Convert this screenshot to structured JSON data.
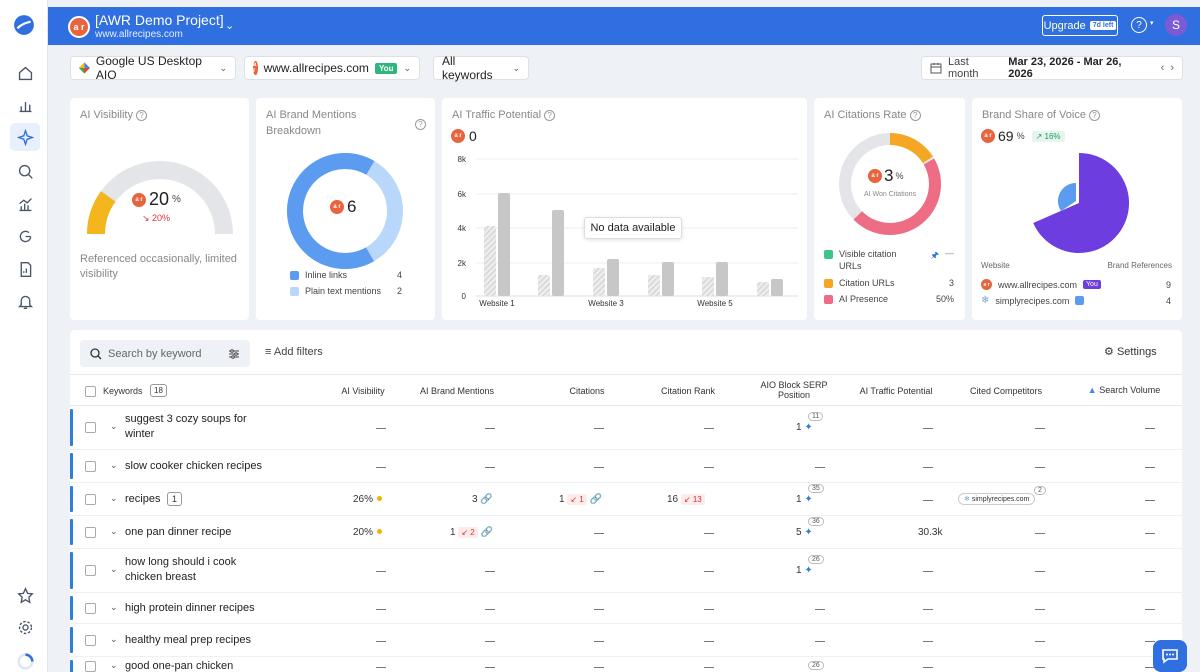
{
  "project": {
    "name": "[AWR Demo Project]",
    "url": "www.allrecipes.com",
    "logo_text": "a r"
  },
  "topbar": {
    "upgrade_label": "Upgrade",
    "days_left": "7d left",
    "help": "?",
    "avatar_initial": "S"
  },
  "filters": {
    "search_engine": "Google US Desktop AIO",
    "site": "www.allrecipes.com",
    "you_badge": "You",
    "keywords": "All keywords",
    "period_label": "Last month",
    "date_range": "Mar 23, 2026 - Mar 26, 2026"
  },
  "cards": {
    "ai_visibility": {
      "title": "AI Visibility",
      "value": "20",
      "unit": "%",
      "change": "20%",
      "gauge_fraction": 0.2,
      "description": "Referenced occasionally, limited visibility"
    },
    "brand_mentions": {
      "title": "AI Brand Mentions Breakdown",
      "value": "6",
      "legend": [
        {
          "label": "Inline links",
          "value": "4",
          "color": "#5b9cf0"
        },
        {
          "label": "Plain text mentions",
          "value": "2",
          "color": "#b9d6fb"
        }
      ]
    },
    "traffic_potential": {
      "title": "AI Traffic Potential",
      "value": "0",
      "no_data": "No data available",
      "y_ticks": [
        "8k",
        "6k",
        "4k",
        "2k",
        "0"
      ],
      "x_labels": [
        "Website 1",
        "Website 3",
        "Website 5"
      ]
    },
    "citations_rate": {
      "title": "AI Citations Rate",
      "value": "3",
      "unit": "%",
      "center_label": "AI Won Citations",
      "legend": [
        {
          "label": "Visible citation URLs",
          "value": "",
          "color": "#3cc48a"
        },
        {
          "label": "Citation URLs",
          "value": "3",
          "color": "#f5a623"
        },
        {
          "label": "AI Presence",
          "value": "50%",
          "color": "#ef6d84"
        }
      ]
    },
    "share_of_voice": {
      "title": "Brand Share of Voice",
      "value": "69",
      "unit": "%",
      "change": "16%",
      "col_website": "Website",
      "col_refs": "Brand References",
      "rows": [
        {
          "site": "www.allrecipes.com",
          "badge": "You",
          "refs": "9",
          "color": "#6d3de0"
        },
        {
          "site": "simplyrecipes.com",
          "badge": "",
          "refs": "4",
          "color": "#5b9cf0"
        }
      ]
    }
  },
  "table": {
    "search_placeholder": "Search by keyword",
    "add_filters": "Add filters",
    "settings": "Settings",
    "headers": {
      "keywords": "Keywords",
      "count": "18",
      "ai_visibility": "AI Visibility",
      "brand_mentions": "AI Brand Mentions",
      "citations": "Citations",
      "citation_rank": "Citation Rank",
      "serp_position": "AIO Block SERP Position",
      "traffic": "AI Traffic Potential",
      "competitors": "Cited Competitors",
      "volume": "Search Volume"
    },
    "rows": [
      {
        "keyword": "suggest 3 cozy soups for winter",
        "serp": "1",
        "serp_badge": "11"
      },
      {
        "keyword": "slow cooker chicken recipes"
      },
      {
        "keyword": "recipes",
        "kw_count": "1",
        "visibility": "26%",
        "mentions": "3",
        "citations": "1",
        "citations_change": "1",
        "rank": "16",
        "rank_change": "13",
        "serp": "1",
        "serp_badge": "35",
        "competitor": "simplyrecipes.com",
        "competitor_count": "2"
      },
      {
        "keyword": "one pan dinner recipe",
        "visibility": "20%",
        "mentions": "1",
        "mentions_change": "2",
        "serp": "5",
        "serp_badge": "36",
        "traffic": "30.3k"
      },
      {
        "keyword": "how long should i cook chicken breast",
        "serp": "1",
        "serp_badge": "26"
      },
      {
        "keyword": "high protein dinner recipes"
      },
      {
        "keyword": "healthy meal prep recipes"
      },
      {
        "keyword": "good one-pan chicken",
        "serp_badge": "26"
      }
    ]
  }
}
